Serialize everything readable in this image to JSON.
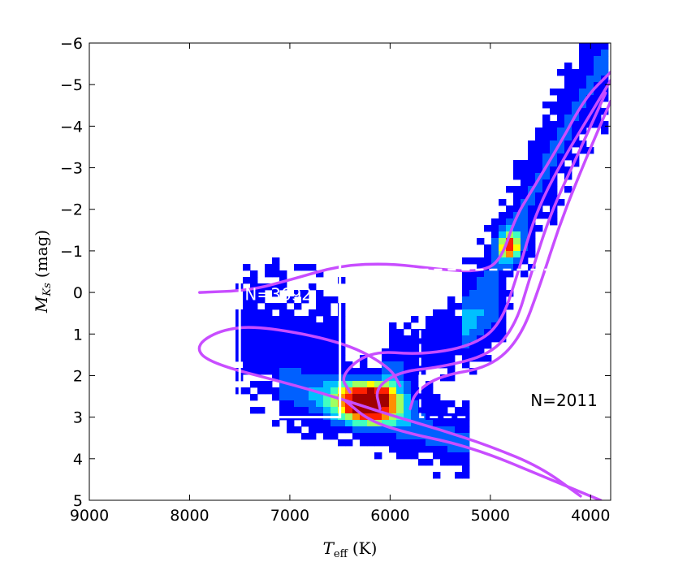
{
  "chart_data": {
    "type": "heatmap",
    "xlabel": "T_eff (K)",
    "xlabel_main": "T",
    "xlabel_sub": "eff",
    "xlabel_unit": "(K)",
    "ylabel": "M_Ks (mag)",
    "ylabel_main": "M",
    "ylabel_sub": "Ks",
    "ylabel_unit": "(mag)",
    "xlim": [
      9000,
      3800
    ],
    "ylim": [
      5,
      -6
    ],
    "x_ticks": [
      9000,
      8000,
      7000,
      6000,
      5000,
      4000
    ],
    "x_tick_labels": [
      "9000",
      "8000",
      "7000",
      "6000",
      "5000",
      "4000"
    ],
    "y_ticks": [
      -6,
      -5,
      -4,
      -3,
      -2,
      -1,
      0,
      1,
      2,
      3,
      4,
      5
    ],
    "y_tick_labels": [
      "−6",
      "−5",
      "−4",
      "−3",
      "−2",
      "−1",
      "0",
      "1",
      "2",
      "3",
      "4",
      "5"
    ],
    "colormap": [
      "#00008f",
      "#0000ff",
      "#0060ff",
      "#00c0ff",
      "#40ffc0",
      "#a0ff60",
      "#ffff00",
      "#ff9000",
      "#ff2000",
      "#a00000"
    ],
    "density_components": [
      {
        "name": "main-sequence-tail",
        "x0": 7000,
        "x1": 5300,
        "y0": 2.3,
        "y1": 3.6,
        "spread_mag": 0.55,
        "weight": 0.25
      },
      {
        "name": "turnoff",
        "x0": 6200,
        "x1": 6200,
        "y0": 2.6,
        "y1": 2.6,
        "spread_t": 320,
        "spread_mag": 0.5,
        "weight": 1.0
      },
      {
        "name": "subgiant-branch",
        "x0": 6000,
        "x1": 4900,
        "y0": 1.8,
        "y1": 0.5,
        "spread_mag": 0.6,
        "weight": 0.18
      },
      {
        "name": "red-giant-branch",
        "x0": 5200,
        "x1": 3900,
        "y0": 0.5,
        "y1": -5.5,
        "spread_mag": 0.9,
        "weight": 0.22
      },
      {
        "name": "red-clump",
        "x0": 4800,
        "x1": 4800,
        "y0": -1.1,
        "y1": -1.1,
        "spread_t": 110,
        "spread_mag": 0.35,
        "weight": 0.65
      },
      {
        "name": "hot-population",
        "x0": 7500,
        "x1": 6500,
        "y0": 1.0,
        "y1": 1.5,
        "spread_t": 700,
        "spread_mag": 1.2,
        "weight": 0.12
      }
    ],
    "isochrones": [
      {
        "points": [
          [
            7900,
            0.0
          ],
          [
            7400,
            -0.05
          ],
          [
            7000,
            -0.3
          ],
          [
            6500,
            -0.65
          ],
          [
            6000,
            -0.7
          ],
          [
            5500,
            -0.55
          ],
          [
            5100,
            -0.5
          ],
          [
            4900,
            -0.75
          ],
          [
            4750,
            -1.8
          ],
          [
            4600,
            -2.4
          ],
          [
            4300,
            -3.6
          ],
          [
            4050,
            -4.7
          ],
          [
            3800,
            -5.3
          ]
        ]
      },
      {
        "points": [
          [
            5900,
            2.25
          ],
          [
            6000,
            1.8
          ],
          [
            6450,
            1.2
          ],
          [
            7300,
            0.8
          ],
          [
            7700,
            0.9
          ],
          [
            7950,
            1.3
          ],
          [
            7800,
            1.7
          ],
          [
            7000,
            2.2
          ],
          [
            6500,
            2.55
          ],
          [
            6000,
            2.95
          ],
          [
            5500,
            3.3
          ],
          [
            5000,
            3.7
          ],
          [
            4500,
            4.2
          ],
          [
            4100,
            4.9
          ]
        ]
      },
      {
        "points": [
          [
            6400,
            2.4
          ],
          [
            6500,
            2.0
          ],
          [
            6200,
            1.4
          ],
          [
            5700,
            1.5
          ],
          [
            5200,
            1.3
          ],
          [
            4900,
            0.8
          ],
          [
            4720,
            -0.5
          ],
          [
            4550,
            -1.9
          ],
          [
            4300,
            -3.1
          ],
          [
            3950,
            -4.5
          ],
          [
            3800,
            -5.1
          ]
        ]
      },
      {
        "points": [
          [
            6100,
            2.8
          ],
          [
            6150,
            2.3
          ],
          [
            5900,
            1.9
          ],
          [
            5500,
            1.8
          ],
          [
            5000,
            1.5
          ],
          [
            4750,
            0.8
          ],
          [
            4600,
            -0.4
          ],
          [
            4400,
            -1.9
          ],
          [
            4150,
            -3.2
          ],
          [
            3850,
            -4.8
          ]
        ]
      },
      {
        "points": [
          [
            5800,
            2.8
          ],
          [
            5750,
            2.4
          ],
          [
            5500,
            2.0
          ],
          [
            5000,
            1.8
          ],
          [
            4700,
            1.1
          ],
          [
            4500,
            -0.2
          ],
          [
            4300,
            -1.7
          ],
          [
            4050,
            -3.2
          ],
          [
            3800,
            -4.6
          ]
        ]
      },
      {
        "points": [
          [
            6450,
            2.6
          ],
          [
            6200,
            3.1
          ],
          [
            5800,
            3.4
          ],
          [
            5400,
            3.6
          ],
          [
            5000,
            3.9
          ],
          [
            4600,
            4.3
          ],
          [
            4200,
            4.7
          ],
          [
            3900,
            5.0
          ]
        ]
      }
    ],
    "boxes": [
      {
        "x0": 7500,
        "x1": 6500,
        "y0": -0.9,
        "y1": 3.0,
        "style": "solid",
        "color": "#ffffff"
      },
      {
        "x0": 5700,
        "x1": 3800,
        "y0": -0.55,
        "y1": 3.0,
        "style": "dashed",
        "color": "#ffffff"
      }
    ],
    "annotations": [
      {
        "text": "N=3692",
        "x": 7450,
        "y": 0.05,
        "color": "#ffffff"
      },
      {
        "text": "N=2011",
        "x": 4600,
        "y": 2.6,
        "color": "#000000"
      }
    ],
    "isochrone_color": "#c84dff",
    "grid": false
  }
}
